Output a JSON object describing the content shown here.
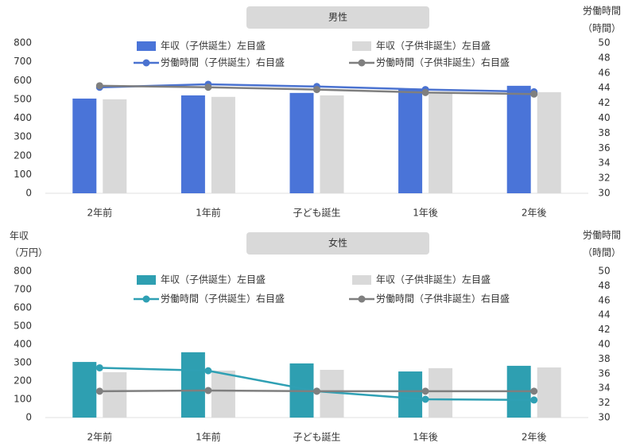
{
  "chart_data": [
    {
      "type": "combo",
      "title": "男性",
      "y2_title": "労働時間",
      "y2_unit": "（時間）",
      "categories": [
        "2年前",
        "1年前",
        "子ども誕生",
        "1年後",
        "2年後"
      ],
      "ylim": [
        0,
        800
      ],
      "yticks": [
        0,
        100,
        200,
        300,
        400,
        500,
        600,
        700,
        800
      ],
      "y2lim": [
        30,
        50
      ],
      "y2ticks": [
        30,
        32,
        34,
        36,
        38,
        40,
        42,
        44,
        46,
        48,
        50
      ],
      "series": [
        {
          "name": "年収（子供誕生）左目盛",
          "kind": "bar",
          "color": "#4a74d8",
          "values": [
            504,
            521,
            534,
            555,
            572
          ]
        },
        {
          "name": "年収（子供非誕生）左目盛",
          "kind": "bar",
          "color": "#d9d9d9",
          "values": [
            500,
            513,
            521,
            530,
            538
          ]
        },
        {
          "name": "労働時間（子供誕生）右目盛",
          "kind": "line",
          "axis": "y2",
          "color": "#4a72d0",
          "values": [
            44.1,
            44.5,
            44.2,
            43.8,
            43.5
          ]
        },
        {
          "name": "労働時間（子供非誕生）右目盛",
          "kind": "line",
          "axis": "y2",
          "color": "#7f7f7f",
          "values": [
            44.3,
            44.1,
            43.8,
            43.4,
            43.2
          ]
        }
      ]
    },
    {
      "type": "combo",
      "title": "女性",
      "y_title": "年収",
      "y_unit": "（万円）",
      "y2_title": "労働時間",
      "y2_unit": "（時間）",
      "categories": [
        "2年前",
        "1年前",
        "子ども誕生",
        "1年後",
        "2年後"
      ],
      "ylim": [
        0,
        800
      ],
      "yticks": [
        0,
        100,
        200,
        300,
        400,
        500,
        600,
        700,
        800
      ],
      "y2lim": [
        30,
        50
      ],
      "y2ticks": [
        30,
        32,
        34,
        36,
        38,
        40,
        42,
        44,
        46,
        48,
        50
      ],
      "series": [
        {
          "name": "年収（子供誕生）左目盛",
          "kind": "bar",
          "color": "#2e9fb1",
          "values": [
            304,
            357,
            296,
            252,
            283
          ]
        },
        {
          "name": "年収（子供非誕生）左目盛",
          "kind": "bar",
          "color": "#d9d9d9",
          "values": [
            248,
            257,
            261,
            270,
            274
          ]
        },
        {
          "name": "労働時間（子供誕生）右目盛",
          "kind": "line",
          "axis": "y2",
          "color": "#2fa0b4",
          "values": [
            36.8,
            36.4,
            33.6,
            32.5,
            32.4
          ]
        },
        {
          "name": "労働時間（子供非誕生）右目盛",
          "kind": "line",
          "axis": "y2",
          "color": "#7f7f7f",
          "values": [
            33.6,
            33.7,
            33.6,
            33.6,
            33.6
          ]
        }
      ]
    }
  ]
}
